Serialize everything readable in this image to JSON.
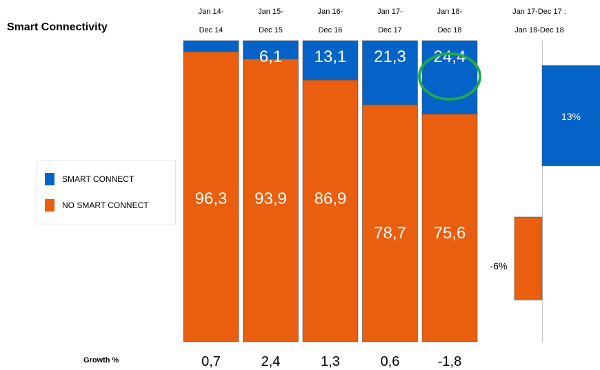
{
  "title": "Smart Connectivity",
  "legend": {
    "items": [
      {
        "label": "SMART CONNECT",
        "color": "#0563C8"
      },
      {
        "label": "NO SMART CONNECT",
        "color": "#E95E0F"
      }
    ]
  },
  "growth_label": "Growth %",
  "chart_data": [
    {
      "type": "bar",
      "stacked": true,
      "categories": [
        [
          "Jan 14-",
          "Dec 14"
        ],
        [
          "Jan 15-",
          "Dec 15"
        ],
        [
          "Jan 16-",
          "Dec 16"
        ],
        [
          "Jan 17-",
          "Dec 17"
        ],
        [
          "Jan 18-",
          "Dec 18"
        ]
      ],
      "series": [
        {
          "name": "NO SMART CONNECT",
          "color": "#E95E0F",
          "values": [
            96.3,
            93.9,
            86.9,
            78.7,
            75.6
          ],
          "labels": [
            "96,3",
            "93,9",
            "86,9",
            "78,7",
            "75,6"
          ]
        },
        {
          "name": "SMART CONNECT",
          "color": "#0563C8",
          "values": [
            3.7,
            6.1,
            13.1,
            21.3,
            24.4
          ],
          "labels": [
            "",
            "6,1",
            "13,1",
            "21,3",
            "24,4"
          ]
        }
      ],
      "growth": [
        "0,7",
        "2,4",
        "1,3",
        "0,6",
        "-1,8"
      ],
      "highlight": {
        "category_index": 4,
        "series": "SMART CONNECT",
        "shape": "ellipse",
        "color": "#21A84E"
      },
      "ylim": [
        0,
        100
      ]
    },
    {
      "type": "bar",
      "waterfall": true,
      "category": [
        "Jan 17-Dec 17 :",
        "Jan 18-Dec 18"
      ],
      "bars": [
        {
          "series": "NO SMART CONNECT",
          "value": -6,
          "label": "-6%",
          "color": "#E95E0F"
        },
        {
          "series": "SMART CONNECT",
          "value": 13,
          "label": "13%",
          "color": "#0563C8"
        }
      ]
    }
  ]
}
